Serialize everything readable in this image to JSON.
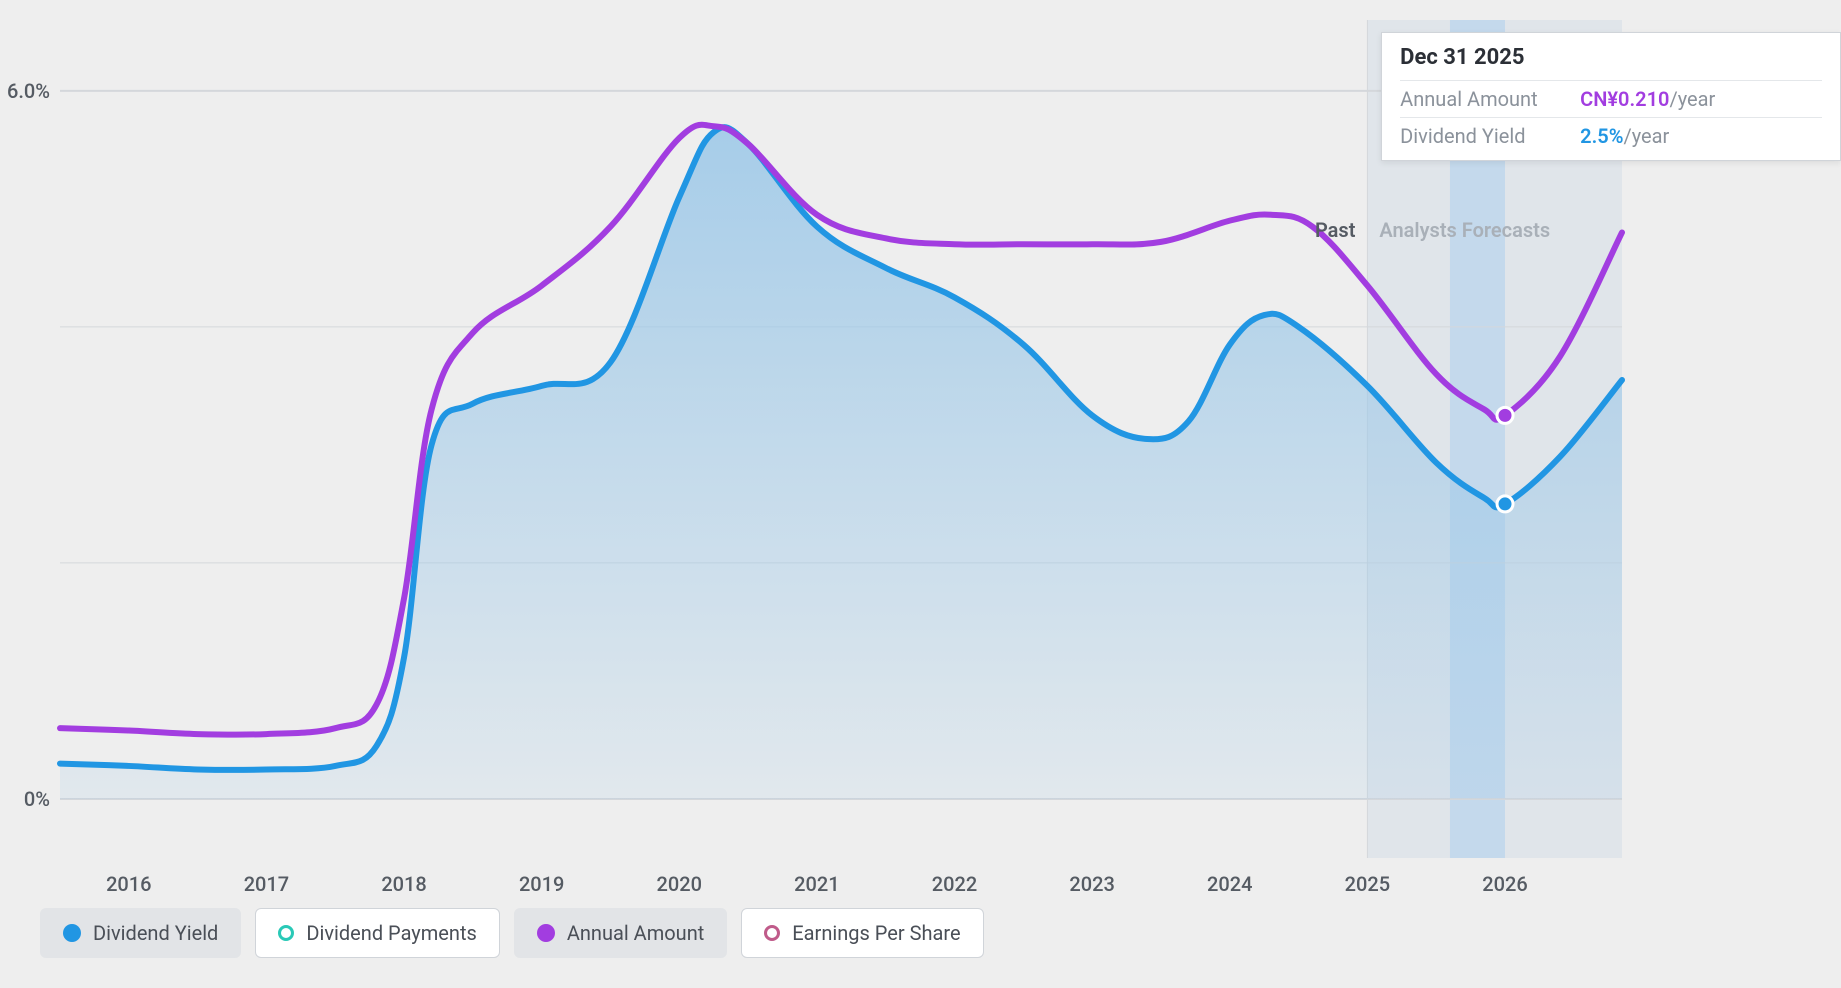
{
  "chart": {
    "type": "line",
    "background_color": "#eeeeee",
    "plot_background": "#eeeeee",
    "gridline_color": "#d4d7db",
    "y": {
      "min": -0.5,
      "max": 6.6,
      "ticks": [
        {
          "value": 0.0,
          "label": "0%"
        },
        {
          "value": 6.0,
          "label": "6.0%"
        }
      ],
      "interior_gridlines": [
        2.0,
        4.0
      ],
      "label_fontsize": 20,
      "label_color": "#555b63"
    },
    "x": {
      "min": 2015.5,
      "max": 2026.85,
      "ticks": [
        2016,
        2017,
        2018,
        2019,
        2020,
        2021,
        2022,
        2023,
        2024,
        2025,
        2026
      ],
      "label_fontsize": 20,
      "label_color": "#555b63"
    },
    "past_forecast_split": 2025.0,
    "past_label": "Past",
    "forecast_label": "Analysts Forecasts",
    "forecast_band_fill": "#e0e5ea",
    "highlight_band": {
      "from": 2025.6,
      "to": 2026.0,
      "fill": "#c4d9ec"
    },
    "series": [
      {
        "id": "dividend_yield",
        "name": "Dividend Yield",
        "color": "#2196e3",
        "line_width": 6,
        "area_fill": true,
        "area_gradient_top": "rgba(154,199,232,0.85)",
        "area_gradient_bottom": "rgba(154,199,232,0.15)",
        "data": [
          [
            2015.5,
            0.3
          ],
          [
            2016.0,
            0.28
          ],
          [
            2016.5,
            0.25
          ],
          [
            2017.0,
            0.25
          ],
          [
            2017.5,
            0.28
          ],
          [
            2017.8,
            0.45
          ],
          [
            2018.0,
            1.2
          ],
          [
            2018.2,
            3.0
          ],
          [
            2018.5,
            3.35
          ],
          [
            2019.0,
            3.5
          ],
          [
            2019.5,
            3.7
          ],
          [
            2020.0,
            5.1
          ],
          [
            2020.25,
            5.65
          ],
          [
            2020.5,
            5.55
          ],
          [
            2021.0,
            4.85
          ],
          [
            2021.5,
            4.5
          ],
          [
            2022.0,
            4.25
          ],
          [
            2022.5,
            3.85
          ],
          [
            2023.0,
            3.25
          ],
          [
            2023.4,
            3.05
          ],
          [
            2023.7,
            3.2
          ],
          [
            2024.0,
            3.85
          ],
          [
            2024.25,
            4.1
          ],
          [
            2024.5,
            4.0
          ],
          [
            2025.0,
            3.5
          ],
          [
            2025.5,
            2.85
          ],
          [
            2025.85,
            2.55
          ],
          [
            2026.0,
            2.5
          ],
          [
            2026.4,
            2.9
          ],
          [
            2026.85,
            3.55
          ]
        ],
        "marker": {
          "x": 2026.0,
          "y": 2.5,
          "r": 8
        }
      },
      {
        "id": "annual_amount",
        "name": "Annual Amount",
        "color": "#a23de0",
        "line_width": 6,
        "area_fill": false,
        "data": [
          [
            2015.5,
            0.6
          ],
          [
            2016.0,
            0.58
          ],
          [
            2016.5,
            0.55
          ],
          [
            2017.0,
            0.55
          ],
          [
            2017.5,
            0.6
          ],
          [
            2017.8,
            0.8
          ],
          [
            2018.0,
            1.7
          ],
          [
            2018.2,
            3.3
          ],
          [
            2018.5,
            3.95
          ],
          [
            2019.0,
            4.35
          ],
          [
            2019.5,
            4.85
          ],
          [
            2020.0,
            5.6
          ],
          [
            2020.25,
            5.7
          ],
          [
            2020.5,
            5.55
          ],
          [
            2021.0,
            4.95
          ],
          [
            2021.5,
            4.75
          ],
          [
            2022.0,
            4.7
          ],
          [
            2022.5,
            4.7
          ],
          [
            2023.0,
            4.7
          ],
          [
            2023.5,
            4.72
          ],
          [
            2024.0,
            4.9
          ],
          [
            2024.3,
            4.95
          ],
          [
            2024.6,
            4.85
          ],
          [
            2025.0,
            4.35
          ],
          [
            2025.5,
            3.6
          ],
          [
            2025.85,
            3.3
          ],
          [
            2026.0,
            3.25
          ],
          [
            2026.4,
            3.75
          ],
          [
            2026.85,
            4.8
          ]
        ],
        "marker": {
          "x": 2026.0,
          "y": 3.25,
          "r": 8
        }
      }
    ]
  },
  "tooltip": {
    "x_anchor": 2025.1,
    "title": "Dec 31 2025",
    "rows": [
      {
        "key": "Annual Amount",
        "value": "CN¥0.210",
        "unit": "/year",
        "value_color": "#a23de0"
      },
      {
        "key": "Dividend Yield",
        "value": "2.5%",
        "unit": "/year",
        "value_color": "#2196e3"
      }
    ]
  },
  "legend": {
    "items": [
      {
        "id": "dividend_yield",
        "label": "Dividend Yield",
        "color": "#2196e3",
        "hollow": false,
        "active": true
      },
      {
        "id": "dividend_payments",
        "label": "Dividend Payments",
        "color": "#2ac9b7",
        "hollow": true,
        "active": false
      },
      {
        "id": "annual_amount",
        "label": "Annual Amount",
        "color": "#a23de0",
        "hollow": false,
        "active": true
      },
      {
        "id": "eps",
        "label": "Earnings Per Share",
        "color": "#c05b8a",
        "hollow": true,
        "active": false
      }
    ]
  }
}
